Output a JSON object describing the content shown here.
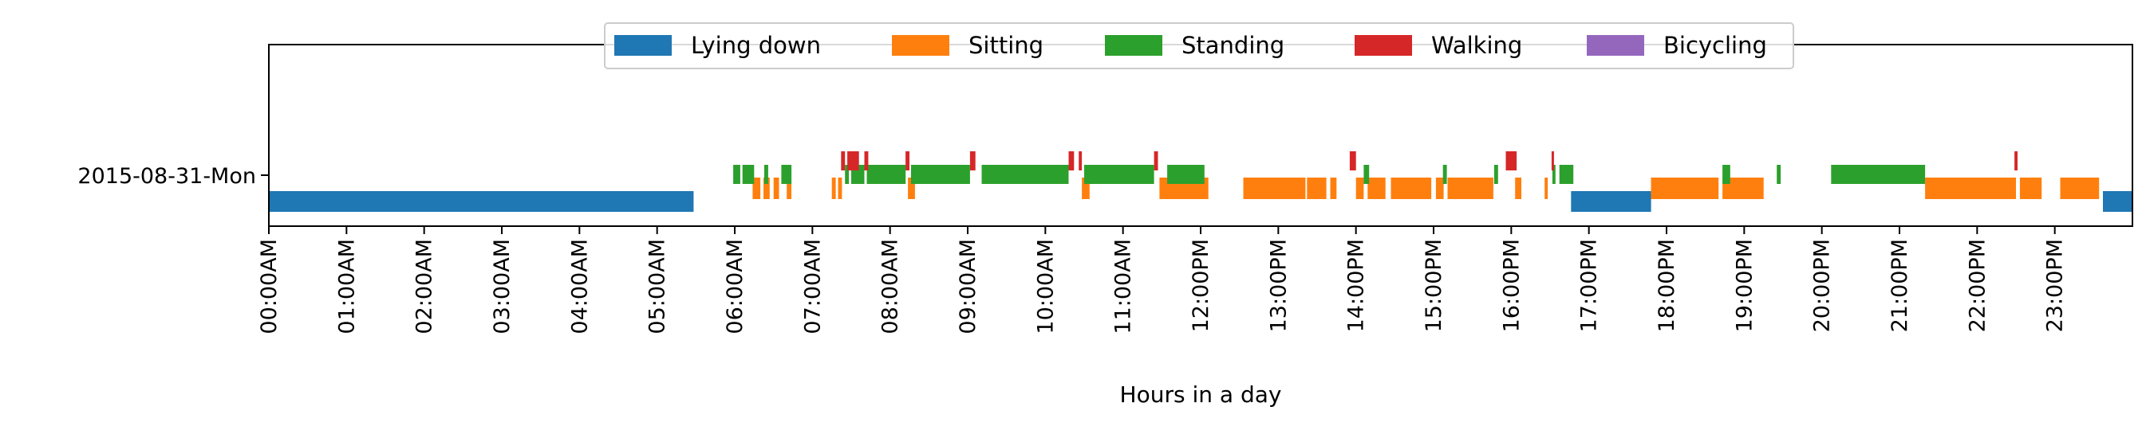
{
  "chart_data": {
    "type": "timeline",
    "xlabel": "Hours in a day",
    "xlim": [
      0,
      24
    ],
    "x_tick_labels": [
      "00:00AM",
      "01:00AM",
      "02:00AM",
      "03:00AM",
      "04:00AM",
      "05:00AM",
      "06:00AM",
      "07:00AM",
      "08:00AM",
      "09:00AM",
      "10:00AM",
      "11:00AM",
      "12:00PM",
      "13:00PM",
      "14:00PM",
      "15:00PM",
      "16:00PM",
      "17:00PM",
      "18:00PM",
      "19:00PM",
      "20:00PM",
      "21:00PM",
      "22:00PM",
      "23:00PM"
    ],
    "y_tick_labels": [
      "2015-08-31-Mon"
    ],
    "legend": {
      "placement": "top-center",
      "entries": [
        {
          "name": "Lying down",
          "color": "#1f77b4"
        },
        {
          "name": "Sitting",
          "color": "#ff7f0e"
        },
        {
          "name": "Standing",
          "color": "#2ca02c"
        },
        {
          "name": "Walking",
          "color": "#d62728"
        },
        {
          "name": "Bicycling",
          "color": "#9467bd"
        }
      ]
    },
    "series": [
      {
        "name": "Lying down",
        "level": 0,
        "intervals": [
          [
            0,
            5.47
          ],
          [
            16.77,
            17.8
          ],
          [
            23.62,
            24
          ]
        ]
      },
      {
        "name": "Sitting",
        "level": 1,
        "intervals": [
          [
            6.23,
            6.33
          ],
          [
            6.37,
            6.45
          ],
          [
            6.5,
            6.57
          ],
          [
            6.67,
            6.73
          ],
          [
            7.25,
            7.3
          ],
          [
            7.33,
            7.38
          ],
          [
            8.23,
            8.32
          ],
          [
            10.47,
            10.57
          ],
          [
            11.47,
            12.1
          ],
          [
            12.55,
            13.35
          ],
          [
            13.37,
            13.62
          ],
          [
            13.67,
            13.75
          ],
          [
            14.0,
            14.1
          ],
          [
            14.15,
            14.38
          ],
          [
            14.45,
            14.97
          ],
          [
            15.03,
            15.13
          ],
          [
            15.18,
            15.77
          ],
          [
            16.05,
            16.13
          ],
          [
            16.43,
            16.47
          ],
          [
            17.8,
            18.67
          ],
          [
            18.72,
            19.25
          ],
          [
            21.33,
            22.5
          ],
          [
            22.55,
            22.83
          ],
          [
            23.07,
            23.57
          ]
        ],
        "approximate": true
      },
      {
        "name": "Standing",
        "level": 2,
        "intervals": [
          [
            5.98,
            6.07
          ],
          [
            6.1,
            6.25
          ],
          [
            6.38,
            6.43
          ],
          [
            6.6,
            6.73
          ],
          [
            7.42,
            7.47
          ],
          [
            7.5,
            7.67
          ],
          [
            7.7,
            8.2
          ],
          [
            8.27,
            9.03
          ],
          [
            9.18,
            10.3
          ],
          [
            10.5,
            11.4
          ],
          [
            11.57,
            12.05
          ],
          [
            14.1,
            14.17
          ],
          [
            15.12,
            15.17
          ],
          [
            15.78,
            15.83
          ],
          [
            16.53,
            16.57
          ],
          [
            16.62,
            16.8
          ],
          [
            18.72,
            18.82
          ],
          [
            19.42,
            19.47
          ],
          [
            20.12,
            21.33
          ]
        ],
        "approximate": true
      },
      {
        "name": "Walking",
        "level": 3,
        "intervals": [
          [
            7.37,
            7.42
          ],
          [
            7.45,
            7.6
          ],
          [
            7.67,
            7.72
          ],
          [
            8.2,
            8.25
          ],
          [
            9.03,
            9.1
          ],
          [
            10.3,
            10.37
          ],
          [
            10.43,
            10.47
          ],
          [
            11.4,
            11.45
          ],
          [
            13.92,
            14.0
          ],
          [
            15.93,
            16.07
          ],
          [
            16.52,
            16.55
          ],
          [
            22.48,
            22.52
          ]
        ],
        "approximate": true
      },
      {
        "name": "Bicycling",
        "level": 4,
        "intervals": []
      }
    ]
  }
}
